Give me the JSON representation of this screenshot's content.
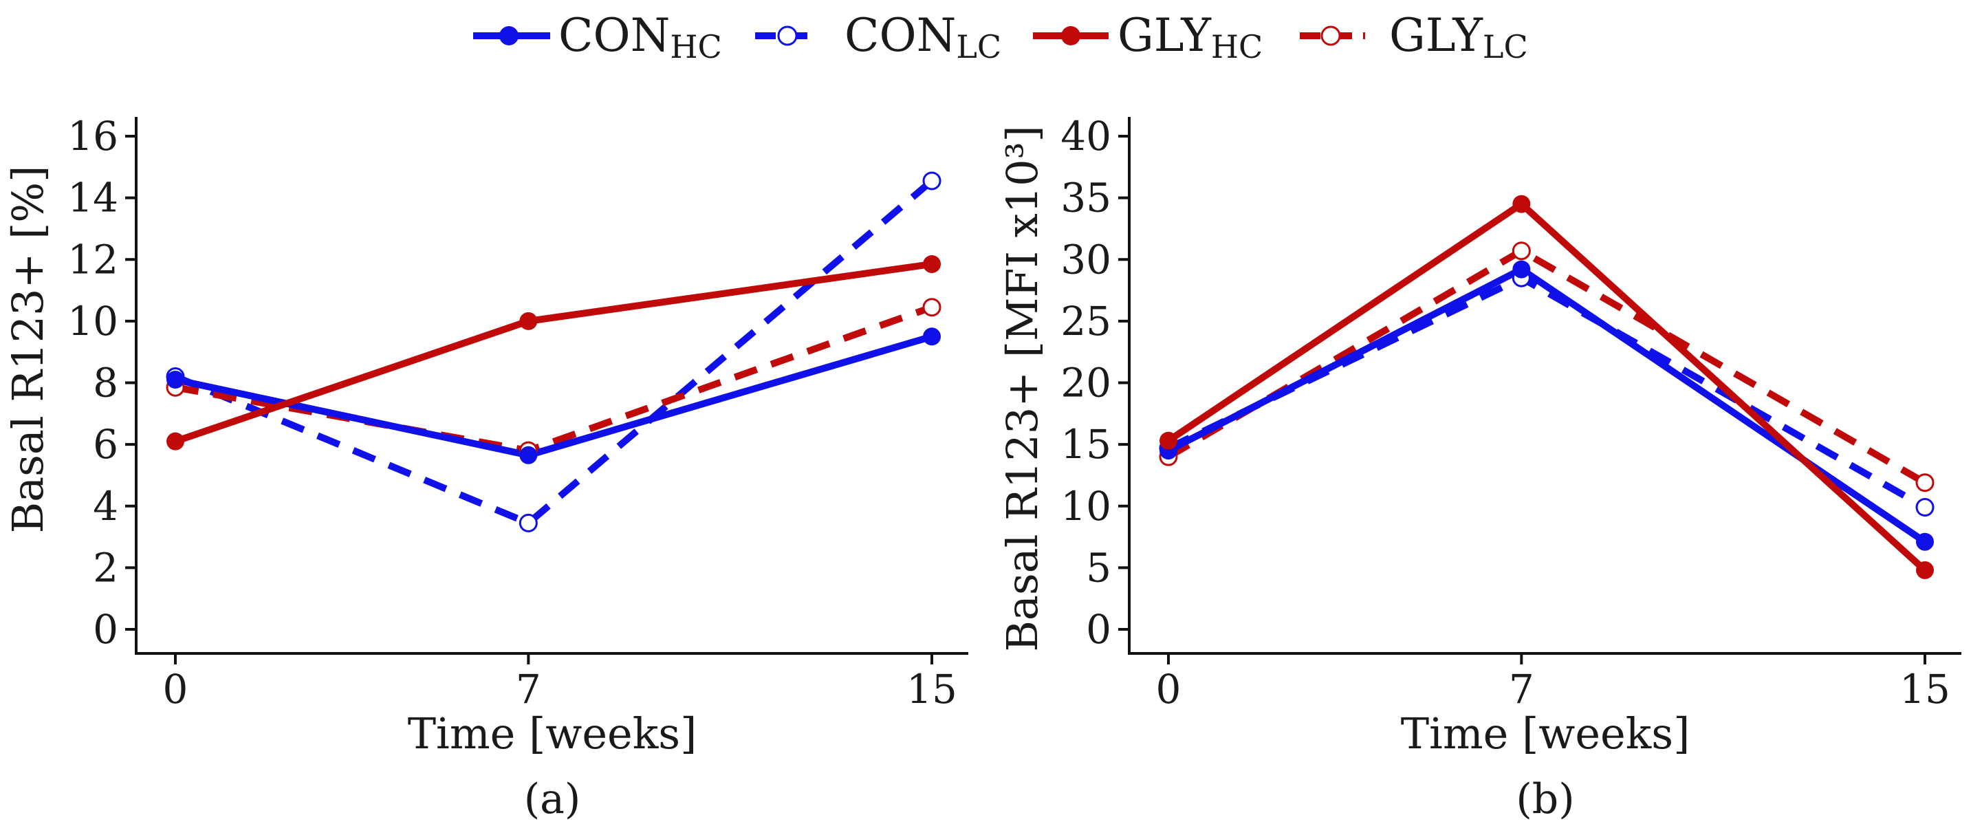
{
  "legend": {
    "entries": [
      {
        "key": "CON_HC",
        "main": "CON",
        "sub": "HC",
        "color": "#1010e8",
        "dash": false,
        "filled": true
      },
      {
        "key": "CON_LC",
        "main": "CON",
        "sub": "LC",
        "color": "#1010e8",
        "dash": true,
        "filled": false
      },
      {
        "key": "GLY_HC",
        "main": "GLY",
        "sub": "HC",
        "color": "#c00a0a",
        "dash": false,
        "filled": true
      },
      {
        "key": "GLY_LC",
        "main": "GLY",
        "sub": "LC",
        "color": "#c00a0a",
        "dash": true,
        "filled": false
      }
    ]
  },
  "chart_data": [
    {
      "type": "line",
      "panel_label": "(a)",
      "xlabel": "Time [weeks]",
      "ylabel": "Basal R123+ [%]",
      "x": [
        0,
        7,
        15
      ],
      "x_tick_labels": [
        "0",
        "7",
        "15"
      ],
      "ylim": [
        0,
        16
      ],
      "y_ticks": [
        0,
        2,
        4,
        6,
        8,
        10,
        12,
        14,
        16
      ],
      "y_tick_labels": [
        "0",
        "2",
        "4",
        "6",
        "8",
        "10",
        "12",
        "14",
        "16"
      ],
      "series": [
        {
          "name": "CON_HC",
          "values": [
            8.1,
            5.65,
            9.5
          ]
        },
        {
          "name": "CON_LC",
          "values": [
            8.2,
            3.45,
            14.55
          ]
        },
        {
          "name": "GLY_HC",
          "values": [
            6.1,
            10.0,
            11.85
          ]
        },
        {
          "name": "GLY_LC",
          "values": [
            7.85,
            5.8,
            10.45
          ]
        }
      ]
    },
    {
      "type": "line",
      "panel_label": "(b)",
      "xlabel": "Time [weeks]",
      "ylabel": "Basal R123+ [MFI x10³]",
      "x": [
        0,
        7,
        15
      ],
      "x_tick_labels": [
        "0",
        "7",
        "15"
      ],
      "ylim": [
        0,
        40
      ],
      "y_ticks": [
        0,
        5,
        10,
        15,
        20,
        25,
        30,
        35,
        40
      ],
      "y_tick_labels": [
        "0",
        "5",
        "10",
        "15",
        "20",
        "25",
        "30",
        "35",
        "40"
      ],
      "series": [
        {
          "name": "CON_HC",
          "values": [
            14.5,
            29.2,
            7.1
          ]
        },
        {
          "name": "CON_LC",
          "values": [
            14.7,
            28.5,
            9.9
          ]
        },
        {
          "name": "GLY_HC",
          "values": [
            15.3,
            34.5,
            4.8
          ]
        },
        {
          "name": "GLY_LC",
          "values": [
            14.0,
            30.7,
            11.9
          ]
        }
      ]
    }
  ]
}
